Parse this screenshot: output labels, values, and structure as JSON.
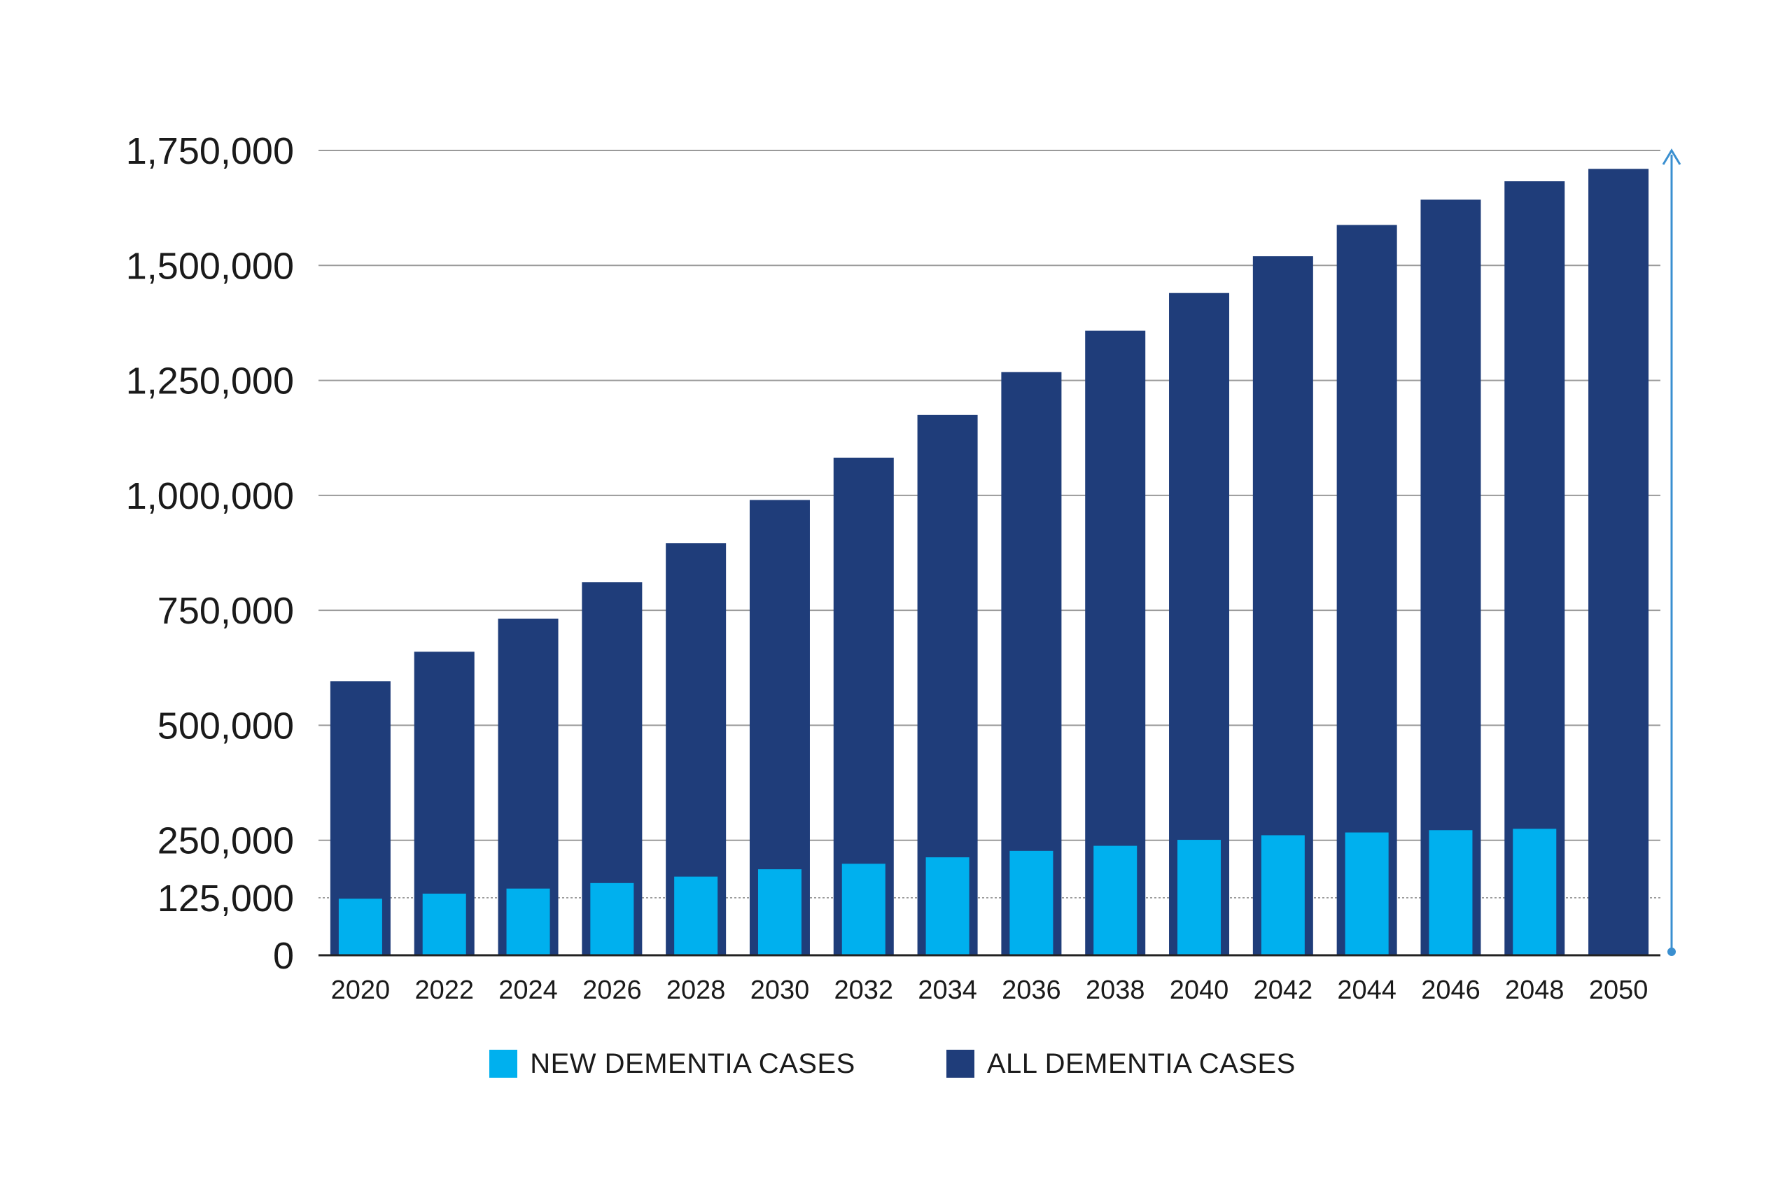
{
  "chart_data": {
    "type": "bar",
    "title": "",
    "xlabel": "",
    "ylabel": "",
    "categories": [
      "2020",
      "2022",
      "2024",
      "2026",
      "2028",
      "2030",
      "2032",
      "2034",
      "2036",
      "2038",
      "2040",
      "2042",
      "2044",
      "2046",
      "2048",
      "2050"
    ],
    "series": [
      {
        "name": "ALL DEMENTIA CASES",
        "color": "#1f3d7a",
        "values": [
          596000,
          660000,
          732000,
          811000,
          896000,
          990000,
          1082000,
          1175000,
          1268000,
          1358000,
          1440000,
          1520000,
          1588000,
          1643000,
          1683000,
          1710000
        ]
      },
      {
        "name": "NEW DEMENTIA CASES",
        "color": "#00b0ee",
        "values": [
          123000,
          134000,
          145000,
          157000,
          171000,
          187000,
          199000,
          213000,
          227000,
          238000,
          251000,
          261000,
          267000,
          272000,
          275000,
          null
        ]
      }
    ],
    "ylim": [
      0,
      1750000
    ],
    "yticks": [
      {
        "value": 0,
        "label": "0"
      },
      {
        "value": 125000,
        "label": "125,000"
      },
      {
        "value": 250000,
        "label": "250,000"
      },
      {
        "value": 500000,
        "label": "500,000"
      },
      {
        "value": 750000,
        "label": "750,000"
      },
      {
        "value": 1000000,
        "label": "1,000,000"
      },
      {
        "value": 1250000,
        "label": "1,250,000"
      },
      {
        "value": 1500000,
        "label": "1,500,000"
      },
      {
        "value": 1750000,
        "label": "1,750,000"
      }
    ],
    "dotted_reference_line": 125000,
    "grid": true,
    "legend_position": "bottom-center",
    "legend": [
      {
        "label": "NEW DEMENTIA CASES",
        "color": "#00b0ee"
      },
      {
        "label": "ALL DEMENTIA CASES",
        "color": "#1f3d7a"
      }
    ],
    "annotation_arrow_color": "#3a8fd0"
  }
}
